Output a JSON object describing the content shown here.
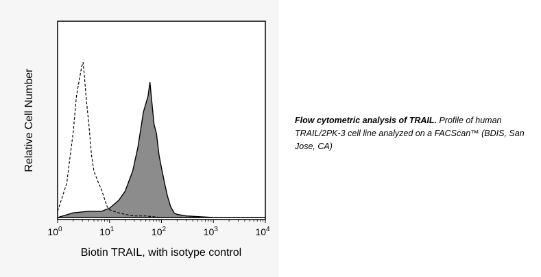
{
  "chart_data": {
    "type": "area",
    "xscale": "log",
    "xlim": [
      1,
      10000
    ],
    "xlabel": "Biotin TRAIL, with isotype control",
    "ylabel": "Relative Cell Number",
    "xticks": [
      {
        "base": "10",
        "exp": "0",
        "value": 1
      },
      {
        "base": "10",
        "exp": "1",
        "value": 10
      },
      {
        "base": "10",
        "exp": "2",
        "value": 100
      },
      {
        "base": "10",
        "exp": "3",
        "value": 1000
      },
      {
        "base": "10",
        "exp": "4",
        "value": 10000
      }
    ],
    "ylim": [
      0,
      100
    ],
    "grid": false,
    "series": [
      {
        "style": "solid-filled",
        "fill": "#8c8c8c",
        "x": [
          1,
          2,
          4,
          7,
          10,
          15,
          20,
          28,
          35,
          45,
          55,
          60,
          65,
          72,
          80,
          90,
          100,
          115,
          130,
          150,
          175,
          200,
          300,
          1000,
          10000
        ],
        "y": [
          0,
          3,
          4,
          4,
          6,
          11,
          17,
          30,
          45,
          68,
          78,
          87,
          75,
          60,
          54,
          40,
          32,
          22,
          14,
          7,
          3,
          2,
          1,
          0,
          0
        ]
      },
      {
        "style": "dashed",
        "x": [
          1,
          1.5,
          2,
          2.3,
          2.6,
          2.9,
          3.1,
          3.3,
          3.6,
          4,
          4.5,
          5,
          6,
          7,
          8,
          9,
          10,
          12,
          15,
          20,
          30,
          50,
          100,
          200,
          500,
          1000,
          10000
        ],
        "y": [
          4,
          22,
          55,
          78,
          88,
          97,
          100,
          90,
          75,
          60,
          40,
          30,
          23,
          18,
          12,
          7,
          5,
          4,
          3,
          2,
          1,
          1,
          0,
          0,
          0,
          0,
          0
        ]
      }
    ]
  },
  "caption": {
    "title": "Flow cytometric analysis of TRAIL.",
    "body": " Profile of human TRAIL/2PK-3 cell line analyzed on a FACScan™ (BDIS, San Jose, CA)"
  }
}
